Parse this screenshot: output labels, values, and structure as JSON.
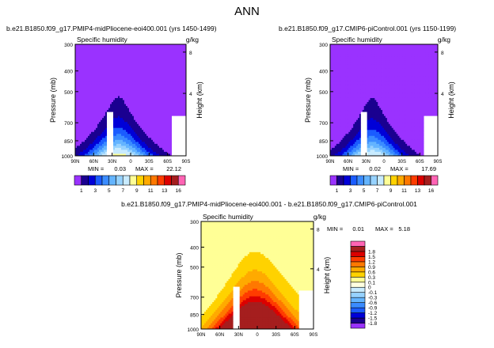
{
  "page_title": "ANN",
  "chart_data": [
    {
      "type": "heatmap",
      "title": "b.e21.B1850.f09_g17.PMIP4-midPliocene-eoi400.001",
      "years": "(yrs 1450-1499)",
      "left_label": "Specific humidity",
      "right_label": "g/kg",
      "ylabel": "Pressure (mb)",
      "ylabel_right": "Height (km)",
      "x_ticks": [
        "90N",
        "60N",
        "30N",
        "0",
        "30S",
        "60S",
        "90S"
      ],
      "y_ticks": [
        "300",
        "400",
        "500",
        "700",
        "850",
        "1000"
      ],
      "height_ticks": [
        "8",
        "4"
      ],
      "min_label": "MIN =",
      "min_value": "0.03",
      "max_label": "MAX =",
      "max_value": "22.12",
      "levels": [
        1,
        3,
        5,
        7,
        9,
        11,
        13,
        16
      ],
      "colorbar_labels": [
        "1",
        "3",
        "5",
        "7",
        "9",
        "11",
        "13",
        "16"
      ],
      "colors": [
        "#9a32ff",
        "#1a0090",
        "#0000d8",
        "#1b5cff",
        "#3b8cff",
        "#64b4ff",
        "#96d2ff",
        "#c8ebff",
        "#ffff96",
        "#ffd200",
        "#ffaa00",
        "#ff7800",
        "#ff3c00",
        "#dc0000",
        "#a51e1e",
        "#ff64b4"
      ],
      "peak": 17.0,
      "peak_lat": 20,
      "sigma_lat": 42,
      "ylim": [
        300,
        1000
      ]
    },
    {
      "type": "heatmap",
      "title": "b.e21.B1850.f09_g17.CMIP6-piControl.001",
      "years": "(yrs 1150-1199)",
      "left_label": "Specific humidity",
      "right_label": "g/kg",
      "ylabel": "Pressure (mb)",
      "ylabel_right": "Height (km)",
      "x_ticks": [
        "90N",
        "60N",
        "30N",
        "0",
        "30S",
        "60S",
        "90S"
      ],
      "y_ticks": [
        "300",
        "400",
        "500",
        "700",
        "850",
        "1000"
      ],
      "height_ticks": [
        "8",
        "4"
      ],
      "min_label": "MIN =",
      "min_value": "0.02",
      "max_label": "MAX =",
      "max_value": "17.69",
      "levels": [
        1,
        3,
        5,
        7,
        9,
        11,
        13,
        16
      ],
      "colorbar_labels": [
        "1",
        "3",
        "5",
        "7",
        "9",
        "11",
        "13",
        "16"
      ],
      "colors": [
        "#9a32ff",
        "#1a0090",
        "#0000d8",
        "#1b5cff",
        "#3b8cff",
        "#64b4ff",
        "#96d2ff",
        "#c8ebff",
        "#ffff96",
        "#ffd200",
        "#ffaa00",
        "#ff7800",
        "#ff3c00",
        "#dc0000",
        "#a51e1e",
        "#ff64b4"
      ],
      "peak": 15.5,
      "peak_lat": 20,
      "sigma_lat": 40,
      "ylim": [
        300,
        1000
      ]
    },
    {
      "type": "heatmap",
      "title": "b.e21.B1850.f09_g17.PMIP4-midPliocene-eoi400.001 - b.e21.B1850.f09_g17.CMIP6-piControl.001",
      "left_label": "Specific humidity",
      "right_label": "g/kg",
      "ylabel": "Pressure (mb)",
      "ylabel_right": "Height (km)",
      "x_ticks": [
        "90N",
        "60N",
        "30N",
        "0",
        "30S",
        "60S",
        "90S"
      ],
      "y_ticks": [
        "300",
        "400",
        "500",
        "700",
        "850",
        "1000"
      ],
      "height_ticks": [
        "8",
        "4"
      ],
      "min_label": "MIN =",
      "min_value": "0.01",
      "max_label": "MAX =",
      "max_value": "5.18",
      "levels": [
        -1.8,
        -1.5,
        -1.2,
        -0.9,
        -0.6,
        -0.3,
        -0.1,
        0,
        0.1,
        0.3,
        0.6,
        0.9,
        1.2,
        1.5,
        1.8
      ],
      "colorbar_labels": [
        "-1.8",
        "-1.5",
        "-1.2",
        "-0.9",
        "-0.6",
        "-0.3",
        "-0.1",
        "0",
        "0.1",
        "0.3",
        "0.6",
        "0.9",
        "1.2",
        "1.5",
        "1.8"
      ],
      "colors": [
        "#9a32ff",
        "#1a0090",
        "#0000d8",
        "#1b5cff",
        "#3b8cff",
        "#64b4ff",
        "#96d2ff",
        "#c8ebff",
        "#ffffe0",
        "#ffff96",
        "#ffd200",
        "#ffaa00",
        "#ff7800",
        "#ff3c00",
        "#dc0000",
        "#a51e1e",
        "#ff64b4"
      ],
      "peak": 4.0,
      "peak_lat": 5,
      "sigma_lat": 48,
      "ylim": [
        300,
        1000
      ]
    }
  ]
}
